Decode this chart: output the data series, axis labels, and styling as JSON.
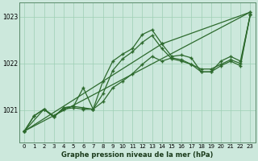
{
  "title": "Graphe pression niveau de la mer (hPa)",
  "bg_color": "#cce8dc",
  "line_color": "#2d6a2d",
  "grid_color": "#9ecfb4",
  "xlim": [
    -0.5,
    23.5
  ],
  "ylim": [
    1020.3,
    1023.3
  ],
  "yticks": [
    1021,
    1022,
    1023
  ],
  "xticks": [
    0,
    1,
    2,
    3,
    4,
    5,
    6,
    7,
    8,
    9,
    10,
    11,
    12,
    13,
    14,
    15,
    16,
    17,
    18,
    19,
    20,
    21,
    22,
    23
  ],
  "line1_x": [
    0,
    1,
    2,
    3,
    4,
    5,
    6,
    7,
    8,
    9,
    10,
    11,
    12,
    13,
    14,
    15,
    16,
    17,
    18,
    19,
    20,
    21,
    22,
    23
  ],
  "line1": [
    1020.55,
    1020.88,
    1021.02,
    1020.88,
    1021.02,
    1021.05,
    1021.02,
    1021.02,
    1021.18,
    1021.48,
    1021.62,
    1021.78,
    1021.98,
    1022.15,
    1022.05,
    1022.12,
    1022.08,
    1021.98,
    1021.88,
    1021.88,
    1021.98,
    1022.08,
    1022.0,
    1023.05
  ],
  "line2_x": [
    0,
    1,
    2,
    3,
    4,
    5,
    6,
    7,
    8,
    9,
    10,
    11,
    12,
    13,
    14,
    15,
    16,
    17,
    18,
    19,
    20,
    21,
    22,
    23
  ],
  "line2": [
    1020.55,
    1020.88,
    1021.02,
    1020.85,
    1021.05,
    1021.08,
    1021.05,
    1021.02,
    1021.35,
    1021.85,
    1022.1,
    1022.25,
    1022.45,
    1022.6,
    1022.32,
    1022.1,
    1022.05,
    1021.98,
    1021.82,
    1021.82,
    1021.95,
    1022.05,
    1021.95,
    1023.05
  ],
  "line3_x": [
    0,
    2,
    3,
    4,
    5,
    6,
    7,
    8,
    9,
    10,
    11,
    12,
    13,
    14,
    15,
    16,
    17,
    18,
    19,
    20,
    21,
    22,
    23
  ],
  "line3": [
    1020.55,
    1021.02,
    1020.85,
    1021.05,
    1021.08,
    1021.48,
    1021.02,
    1021.62,
    1022.05,
    1022.2,
    1022.32,
    1022.62,
    1022.72,
    1022.42,
    1022.15,
    1022.18,
    1022.12,
    1021.82,
    1021.82,
    1022.05,
    1022.15,
    1022.05,
    1023.05
  ],
  "line4_x": [
    0,
    23
  ],
  "line4": [
    1020.55,
    1023.1
  ],
  "line5_x": [
    0,
    14,
    23
  ],
  "line5": [
    1020.55,
    1022.42,
    1023.1
  ]
}
